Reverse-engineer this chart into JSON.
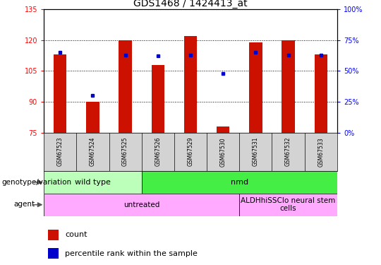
{
  "title": "GDS1468 / 1424413_at",
  "samples": [
    "GSM67523",
    "GSM67524",
    "GSM67525",
    "GSM67526",
    "GSM67529",
    "GSM67530",
    "GSM67531",
    "GSM67532",
    "GSM67533"
  ],
  "count_values": [
    113,
    90,
    120,
    108,
    122,
    78,
    119,
    120,
    113
  ],
  "percentile_values": [
    65,
    30,
    63,
    62,
    63,
    48,
    65,
    63,
    63
  ],
  "ylim_left": [
    75,
    135
  ],
  "ylim_right": [
    0,
    100
  ],
  "yticks_left": [
    75,
    90,
    105,
    120,
    135
  ],
  "yticks_right": [
    0,
    25,
    50,
    75,
    100
  ],
  "bar_color": "#cc1100",
  "dot_color": "#0000cc",
  "bar_base": 75,
  "genotype_groups": [
    {
      "label": "wild type",
      "start": 0,
      "end": 3,
      "color": "#bbffbb"
    },
    {
      "label": "nmd",
      "start": 3,
      "end": 9,
      "color": "#44ee44"
    }
  ],
  "agent_groups": [
    {
      "label": "untreated",
      "start": 0,
      "end": 6,
      "color": "#ffaaff"
    },
    {
      "label": "ALDHhiSSClo neural stem\ncells",
      "start": 6,
      "end": 9,
      "color": "#ffaaff"
    }
  ],
  "genotype_label": "genotype/variation",
  "agent_label": "agent",
  "legend_count": "count",
  "legend_percentile": "percentile rank within the sample",
  "title_fontsize": 10,
  "tick_fontsize": 7,
  "row_fontsize": 8,
  "legend_fontsize": 8
}
